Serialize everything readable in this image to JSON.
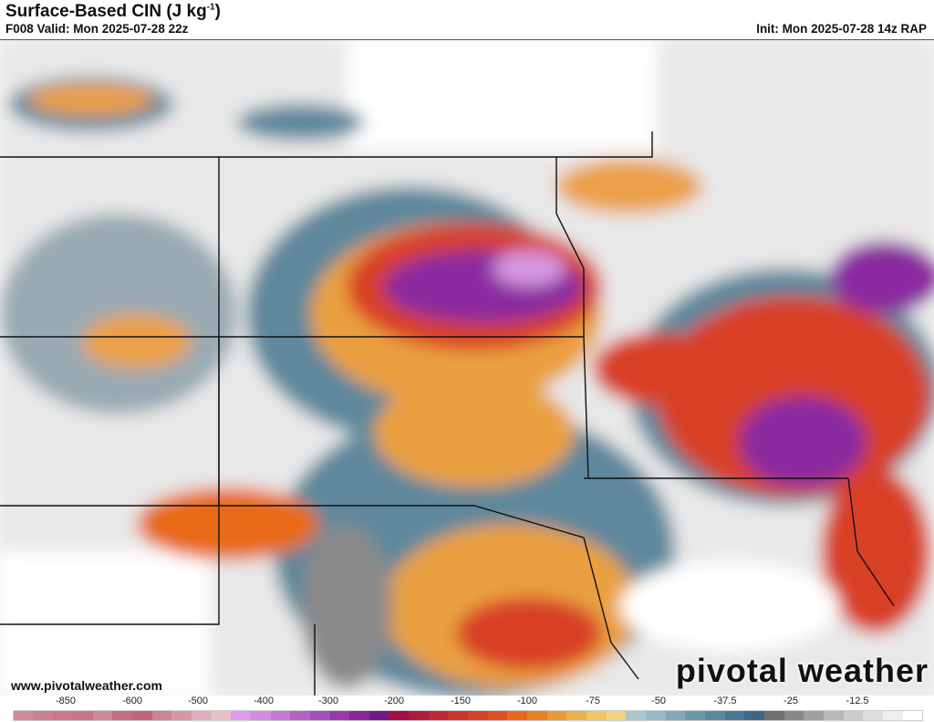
{
  "header": {
    "title": "Surface-Based CIN (J kg",
    "title_sup": "-1",
    "title_end": ")",
    "valid": "F008 Valid: Mon 2025-07-28 22z",
    "init": "Init: Mon 2025-07-28 14z RAP"
  },
  "footer": {
    "url": "www.pivotalweather.com",
    "logo": "pivotal weather"
  },
  "colorbar": {
    "labels": [
      "-850",
      "-600",
      "-500",
      "-400",
      "-300",
      "-200",
      "-150",
      "-100",
      "-75",
      "-50",
      "-37.5",
      "-25",
      "-12.5"
    ],
    "colors": [
      "#d28a96",
      "#cc8090",
      "#c87a8a",
      "#c67888",
      "#d08898",
      "#c46e80",
      "#c06878",
      "#cc8496",
      "#d896a6",
      "#e0b0bc",
      "#e8c0c8",
      "#dc9ce8",
      "#d48ce4",
      "#c878d8",
      "#b860c8",
      "#a84cb8",
      "#983aa8",
      "#86289a",
      "#741888",
      "#a0104a",
      "#b01c40",
      "#c02838",
      "#cc3430",
      "#d84028",
      "#e05020",
      "#e86a18",
      "#ea8222",
      "#ec9a34",
      "#eeb04a",
      "#f0c462",
      "#f2d47c",
      "#a8c8d0",
      "#94b8c4",
      "#80a8b8",
      "#6c98ac",
      "#5a88a0",
      "#4a7894",
      "#3c6888",
      "#707070",
      "#888888",
      "#a0a0a0",
      "#b8b8b8",
      "#cccccc",
      "#dedede",
      "#eeeeee",
      "#ffffff"
    ]
  }
}
